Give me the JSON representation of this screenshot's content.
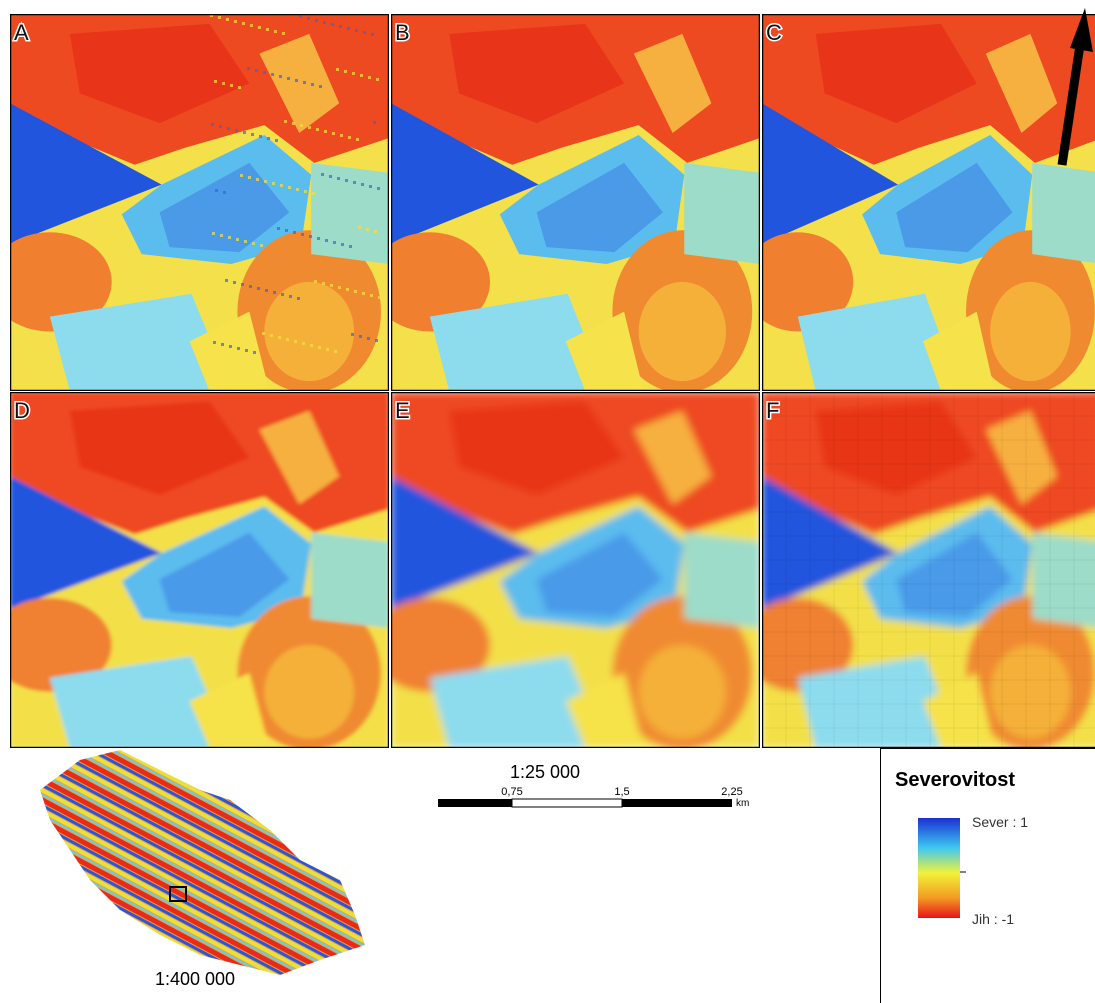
{
  "panels": [
    "A",
    "B",
    "C",
    "D",
    "E",
    "F"
  ],
  "scale_bar": {
    "title": "1:25 000",
    "ticks": [
      "0,75",
      "1,5",
      "2,25"
    ],
    "unit": "km"
  },
  "overview": {
    "scale": "1:400 000"
  },
  "legend": {
    "title": "Severovitost",
    "max_label": "Sever : 1",
    "min_label": "Jih : -1"
  }
}
